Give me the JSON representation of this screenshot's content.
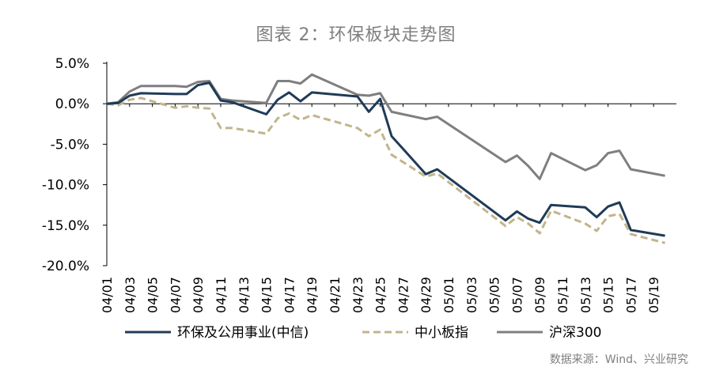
{
  "title": "图表 2：环保板块走势图",
  "source": "数据来源：Wind、兴业研究",
  "colors": {
    "env": "#1f3b57",
    "sme": "#c2b48c",
    "hs300": "#7f7f7f",
    "text": "#000000",
    "axis": "#000000"
  },
  "chart_data": {
    "type": "line",
    "title": "图表 2：环保板块走势图",
    "xlabel": "",
    "ylabel": "",
    "ylim": [
      -20,
      5
    ],
    "yticks": [
      "5.0%",
      "0.0%",
      "-5.0%",
      "-10.0%",
      "-15.0%",
      "-20.0%"
    ],
    "ytick_values": [
      5,
      0,
      -5,
      -10,
      -15,
      -20
    ],
    "xticks": [
      "04/01",
      "04/03",
      "04/05",
      "04/07",
      "04/09",
      "04/11",
      "04/13",
      "04/15",
      "04/17",
      "04/19",
      "04/21",
      "04/23",
      "04/25",
      "04/27",
      "04/29",
      "05/01",
      "05/03",
      "05/05",
      "05/07",
      "05/09",
      "05/11",
      "05/13",
      "05/15",
      "05/17",
      "05/19"
    ],
    "grid": false,
    "legend_position": "bottom",
    "series": [
      {
        "name": "环保及公用事业(中信)",
        "style": "solid",
        "color_key": "env",
        "points": [
          [
            "04/01",
            0
          ],
          [
            "04/02",
            0.1
          ],
          [
            "04/03",
            1.0
          ],
          [
            "04/04",
            1.3
          ],
          [
            "04/07",
            1.2
          ],
          [
            "04/08",
            1.2
          ],
          [
            "04/09",
            2.3
          ],
          [
            "04/10",
            2.6
          ],
          [
            "04/11",
            0.4
          ],
          [
            "04/12",
            0.2
          ],
          [
            "04/15",
            -1.3
          ],
          [
            "04/16",
            0.5
          ],
          [
            "04/17",
            1.4
          ],
          [
            "04/18",
            0.3
          ],
          [
            "04/19",
            1.4
          ],
          [
            "04/23",
            0.9
          ],
          [
            "04/24",
            -1.0
          ],
          [
            "04/25",
            0.6
          ],
          [
            "04/26",
            -4.0
          ],
          [
            "04/29",
            -8.7
          ],
          [
            "04/30",
            -8.1
          ],
          [
            "05/06",
            -14.4
          ],
          [
            "05/07",
            -13.3
          ],
          [
            "05/08",
            -14.2
          ],
          [
            "05/09",
            -14.7
          ],
          [
            "05/10",
            -12.5
          ],
          [
            "05/13",
            -12.8
          ],
          [
            "05/14",
            -14.0
          ],
          [
            "05/15",
            -12.7
          ],
          [
            "05/16",
            -12.2
          ],
          [
            "05/17",
            -15.6
          ],
          [
            "05/20",
            -16.3
          ]
        ]
      },
      {
        "name": "中小板指",
        "style": "dashed",
        "color_key": "sme",
        "points": [
          [
            "04/01",
            0
          ],
          [
            "04/02",
            -0.2
          ],
          [
            "04/03",
            0.5
          ],
          [
            "04/04",
            0.7
          ],
          [
            "04/07",
            -0.5
          ],
          [
            "04/08",
            -0.3
          ],
          [
            "04/09",
            -0.5
          ],
          [
            "04/10",
            -0.6
          ],
          [
            "04/11",
            -3.0
          ],
          [
            "04/12",
            -3.0
          ],
          [
            "04/15",
            -3.7
          ],
          [
            "04/16",
            -1.8
          ],
          [
            "04/17",
            -1.2
          ],
          [
            "04/18",
            -2.0
          ],
          [
            "04/19",
            -1.4
          ],
          [
            "04/23",
            -3.0
          ],
          [
            "04/24",
            -4.0
          ],
          [
            "04/25",
            -3.2
          ],
          [
            "04/26",
            -6.3
          ],
          [
            "04/29",
            -9.0
          ],
          [
            "04/30",
            -8.6
          ],
          [
            "05/06",
            -15.1
          ],
          [
            "05/07",
            -14.0
          ],
          [
            "05/08",
            -14.8
          ],
          [
            "05/09",
            -16.0
          ],
          [
            "05/10",
            -13.2
          ],
          [
            "05/13",
            -14.8
          ],
          [
            "05/14",
            -15.7
          ],
          [
            "05/15",
            -13.9
          ],
          [
            "05/16",
            -13.6
          ],
          [
            "05/17",
            -16.1
          ],
          [
            "05/20",
            -17.2
          ]
        ]
      },
      {
        "name": "沪深300",
        "style": "solid",
        "color_key": "hs300",
        "points": [
          [
            "04/01",
            0
          ],
          [
            "04/02",
            0.2
          ],
          [
            "04/03",
            1.5
          ],
          [
            "04/04",
            2.2
          ],
          [
            "04/07",
            2.2
          ],
          [
            "04/08",
            2.1
          ],
          [
            "04/09",
            2.7
          ],
          [
            "04/10",
            2.8
          ],
          [
            "04/11",
            0.6
          ],
          [
            "04/12",
            0.4
          ],
          [
            "04/15",
            0.1
          ],
          [
            "04/16",
            2.8
          ],
          [
            "04/17",
            2.8
          ],
          [
            "04/18",
            2.5
          ],
          [
            "04/19",
            3.6
          ],
          [
            "04/23",
            1.1
          ],
          [
            "04/24",
            1.0
          ],
          [
            "04/25",
            1.3
          ],
          [
            "04/26",
            -1.0
          ],
          [
            "04/29",
            -1.9
          ],
          [
            "04/30",
            -1.6
          ],
          [
            "05/06",
            -7.2
          ],
          [
            "05/07",
            -6.4
          ],
          [
            "05/08",
            -7.7
          ],
          [
            "05/09",
            -9.3
          ],
          [
            "05/10",
            -6.1
          ],
          [
            "05/13",
            -8.2
          ],
          [
            "05/14",
            -7.6
          ],
          [
            "05/15",
            -6.1
          ],
          [
            "05/16",
            -5.8
          ],
          [
            "05/17",
            -8.1
          ],
          [
            "05/20",
            -8.9
          ]
        ]
      }
    ]
  }
}
